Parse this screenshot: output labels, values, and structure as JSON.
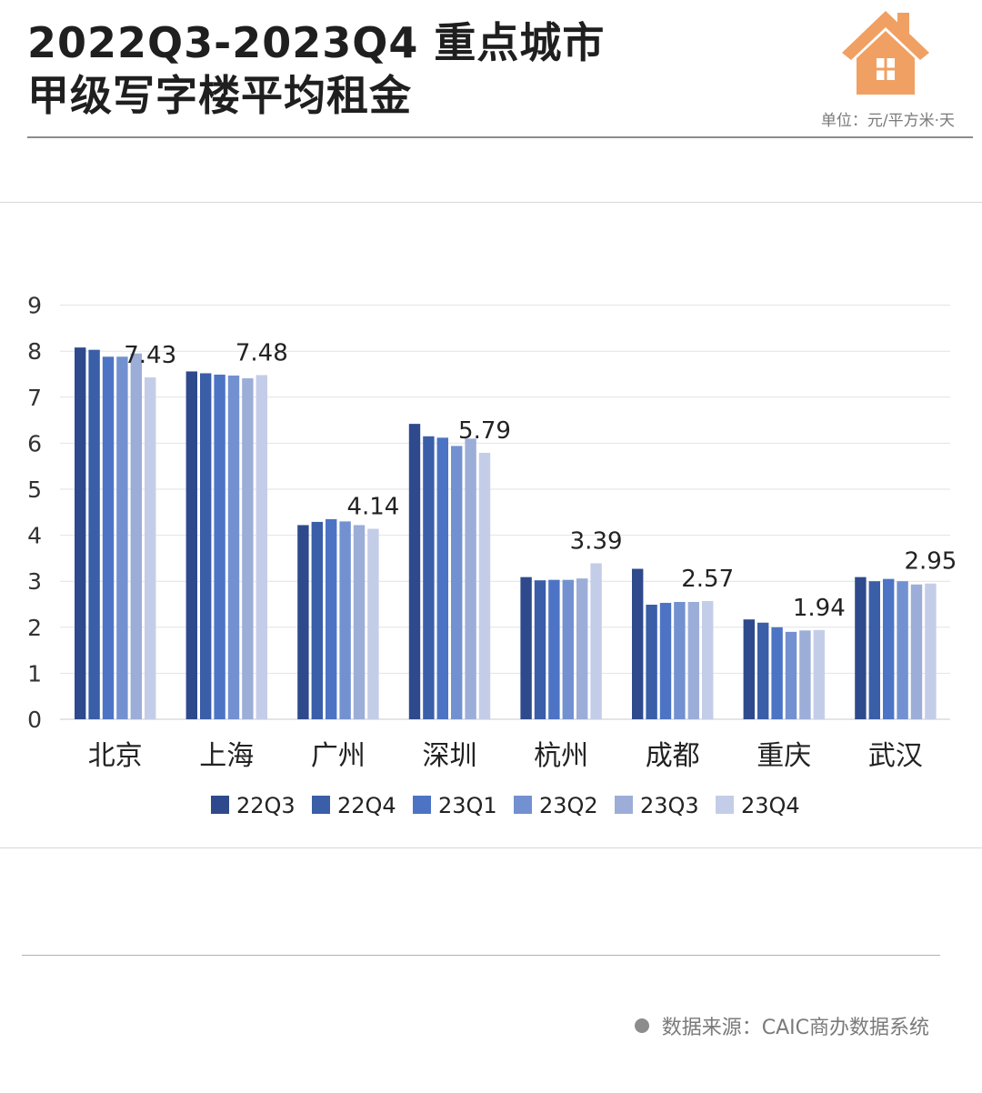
{
  "header": {
    "title_line1": "2022Q3-2023Q4 重点城市",
    "title_line2": "甲级写字楼平均租金",
    "unit": "单位：元/平方米·天"
  },
  "footer": {
    "source": "数据来源：CAIC商办数据系统"
  },
  "colors": {
    "icon": "#f0a063",
    "series": [
      "#2e4a8c",
      "#3a5ea8",
      "#4d74c4",
      "#7391d0",
      "#9cadd8",
      "#c4cde8"
    ]
  },
  "chart_data": {
    "type": "bar",
    "title": "2022Q3-2023Q4 重点城市 甲级写字楼平均租金",
    "ylim": [
      0,
      9
    ],
    "yticks": [
      0,
      1,
      2,
      3,
      4,
      5,
      6,
      7,
      8,
      9
    ],
    "grid": true,
    "legend_position": "bottom",
    "categories": [
      "北京",
      "上海",
      "广州",
      "深圳",
      "杭州",
      "成都",
      "重庆",
      "武汉"
    ],
    "series": [
      {
        "name": "22Q3",
        "values": [
          8.08,
          7.56,
          4.22,
          6.42,
          3.09,
          3.27,
          2.17,
          3.09
        ]
      },
      {
        "name": "22Q4",
        "values": [
          8.03,
          7.52,
          4.29,
          6.15,
          3.02,
          2.49,
          2.1,
          3.0
        ]
      },
      {
        "name": "23Q1",
        "values": [
          7.88,
          7.49,
          4.35,
          6.12,
          3.03,
          2.53,
          2.0,
          3.05
        ]
      },
      {
        "name": "23Q2",
        "values": [
          7.88,
          7.47,
          4.3,
          5.94,
          3.03,
          2.55,
          1.9,
          3.0
        ]
      },
      {
        "name": "23Q3",
        "values": [
          7.95,
          7.41,
          4.22,
          6.1,
          3.06,
          2.55,
          1.93,
          2.93
        ]
      },
      {
        "name": "23Q4",
        "values": [
          7.43,
          7.48,
          4.14,
          5.79,
          3.39,
          2.57,
          1.94,
          2.95
        ]
      }
    ],
    "data_labels": [
      "7.43",
      "7.48",
      "4.14",
      "5.79",
      "3.39",
      "2.57",
      "1.94",
      "2.95"
    ]
  }
}
